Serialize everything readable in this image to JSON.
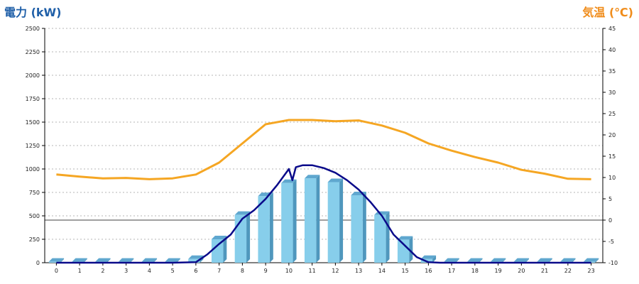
{
  "chart_data": {
    "type": "bar+line",
    "left_axis": {
      "title": "電力 (kW)",
      "color": "#1f5fa8",
      "min": 0,
      "max": 2500,
      "ticks": [
        0,
        250,
        500,
        750,
        1000,
        1250,
        1500,
        1750,
        2000,
        2250,
        2500
      ]
    },
    "right_axis": {
      "title": "気温 (℃)",
      "color": "#f08c1a",
      "min": -10,
      "max": 45,
      "ticks": [
        -10,
        -5,
        0,
        5,
        10,
        15,
        20,
        25,
        30,
        35,
        40,
        45
      ]
    },
    "x": [
      0,
      1,
      2,
      3,
      4,
      5,
      6,
      7,
      8,
      9,
      10,
      11,
      12,
      13,
      14,
      15,
      16,
      17,
      18,
      19,
      20,
      21,
      22,
      23
    ],
    "grid": true,
    "series": [
      {
        "kind": "bar",
        "axis": "left",
        "color": "#87ceeb",
        "values": [
          10,
          10,
          10,
          10,
          10,
          10,
          40,
          250,
          510,
          710,
          850,
          900,
          860,
          720,
          510,
          245,
          40,
          10,
          10,
          10,
          10,
          10,
          10,
          10
        ]
      },
      {
        "kind": "line",
        "axis": "left",
        "color": "#0a0a8a",
        "points": [
          [
            0,
            0
          ],
          [
            1,
            0
          ],
          [
            2,
            0
          ],
          [
            3,
            0
          ],
          [
            4,
            0
          ],
          [
            5,
            0
          ],
          [
            6,
            5
          ],
          [
            6.5,
            90
          ],
          [
            7,
            200
          ],
          [
            7.5,
            300
          ],
          [
            8,
            470
          ],
          [
            8.5,
            560
          ],
          [
            9,
            680
          ],
          [
            9.5,
            830
          ],
          [
            10,
            1000
          ],
          [
            10.15,
            880
          ],
          [
            10.3,
            1020
          ],
          [
            10.6,
            1040
          ],
          [
            11,
            1040
          ],
          [
            11.5,
            1010
          ],
          [
            12,
            960
          ],
          [
            12.5,
            880
          ],
          [
            13,
            780
          ],
          [
            13.5,
            650
          ],
          [
            14,
            500
          ],
          [
            14.5,
            300
          ],
          [
            15,
            180
          ],
          [
            15.5,
            60
          ],
          [
            16,
            5
          ],
          [
            16.5,
            0
          ],
          [
            17,
            0
          ],
          [
            18,
            0
          ],
          [
            19,
            0
          ],
          [
            20,
            0
          ],
          [
            21,
            0
          ],
          [
            22,
            0
          ],
          [
            23,
            0
          ]
        ]
      },
      {
        "kind": "line",
        "axis": "right",
        "color": "#f5a623",
        "values": [
          10.7,
          10.2,
          9.8,
          9.9,
          9.6,
          9.8,
          10.7,
          13.5,
          18,
          22.5,
          23.5,
          23.5,
          23.2,
          23.4,
          22.2,
          20.5,
          18,
          16.3,
          14.8,
          13.5,
          11.8,
          10.9,
          9.7,
          9.6
        ]
      }
    ]
  }
}
